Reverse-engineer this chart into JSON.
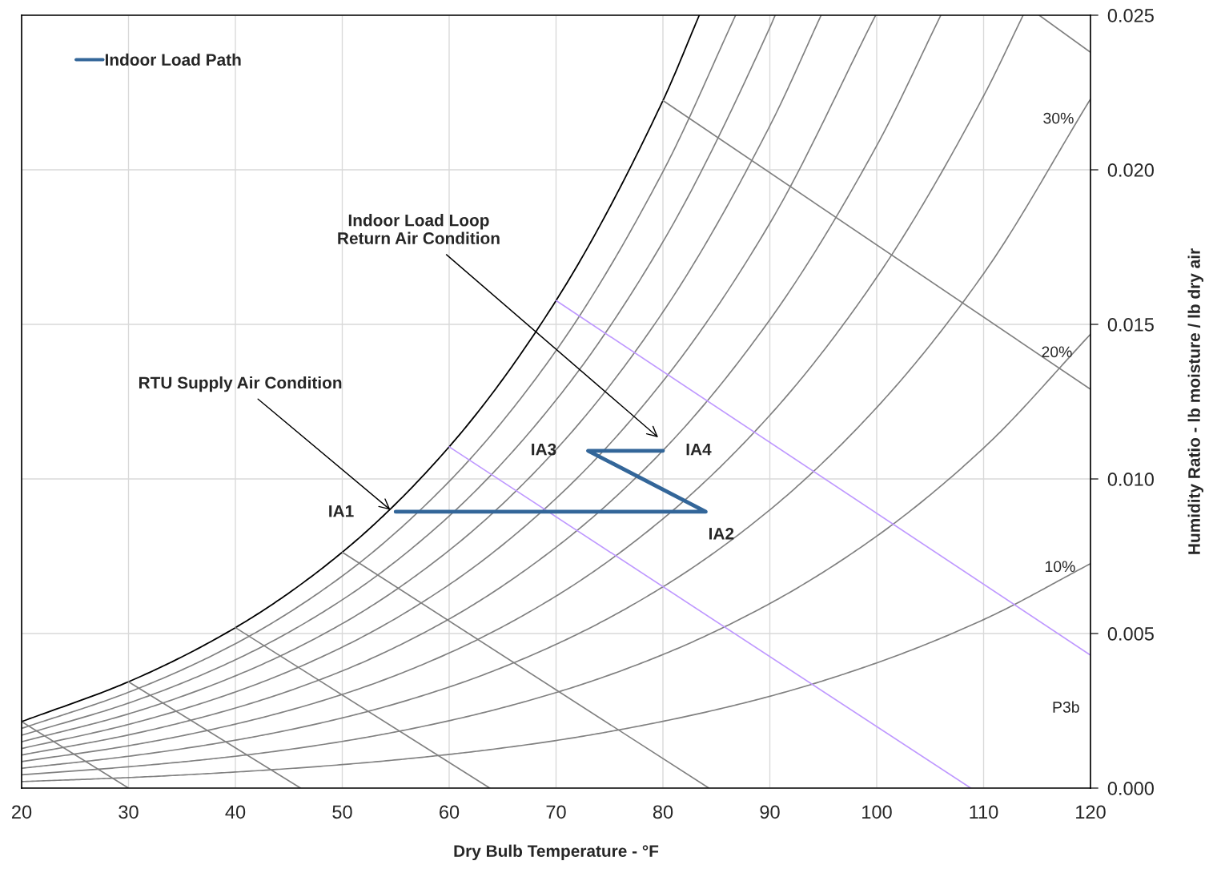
{
  "chart_data": {
    "type": "line",
    "xlabel": "Dry Bulb Temperature - °F",
    "ylabel": "Humidity Ratio - lb moisture / lb dry air",
    "xlim": [
      20,
      120
    ],
    "xticks": [
      20,
      30,
      40,
      50,
      60,
      70,
      80,
      90,
      100,
      110,
      120
    ],
    "ylim": [
      0,
      0.025
    ],
    "yticks": [
      {
        "value": 0,
        "label": "0.000"
      },
      {
        "value": 0.005,
        "label": "0.005"
      },
      {
        "value": 0.01,
        "label": "0.010"
      },
      {
        "value": 0.015,
        "label": "0.015"
      },
      {
        "value": 0.02,
        "label": "0.020"
      },
      {
        "value": 0.025,
        "label": "0.025"
      }
    ],
    "grid": true,
    "legend": "top left",
    "line_style": "solid",
    "series": [
      {
        "color": "#000000",
        "x": [
          20,
          30,
          40,
          50,
          60,
          70,
          80,
          83.4
        ],
        "values": [
          0.00215,
          0.00344,
          0.00519,
          0.00763,
          0.01104,
          0.01577,
          0.02224,
          0.025
        ]
      },
      {
        "color": "#808080",
        "x": [
          20,
          30,
          40,
          50,
          60,
          70,
          80,
          86.8
        ],
        "values": [
          0.00193,
          0.0031,
          0.00467,
          0.00686,
          0.00992,
          0.01415,
          0.01994,
          0.025
        ]
      },
      {
        "color": "#808080",
        "x": [
          20,
          30,
          40,
          50,
          60,
          70,
          80,
          90,
          90.5
        ],
        "values": [
          0.00171,
          0.00275,
          0.00415,
          0.00609,
          0.0088,
          0.01255,
          0.01767,
          0.0246,
          0.025
        ]
      },
      {
        "color": "#808080",
        "x": [
          20,
          30,
          40,
          50,
          60,
          70,
          80,
          90,
          94.8
        ],
        "values": [
          0.0015,
          0.0024,
          0.00363,
          0.00532,
          0.00769,
          0.01095,
          0.0154,
          0.02142,
          0.025
        ]
      },
      {
        "color": "#808080",
        "x": [
          20,
          30,
          40,
          50,
          60,
          70,
          80,
          90,
          99.9
        ],
        "values": [
          0.00128,
          0.00206,
          0.00311,
          0.00456,
          0.00658,
          0.00937,
          0.01316,
          0.01827,
          0.025
        ]
      },
      {
        "color": "#808080",
        "x": [
          20,
          30,
          40,
          50,
          60,
          70,
          80,
          90,
          100,
          106.0
        ],
        "values": [
          0.00107,
          0.00172,
          0.00259,
          0.00379,
          0.00547,
          0.00779,
          0.01092,
          0.01515,
          0.02078,
          0.025
        ]
      },
      {
        "color": "#808080",
        "x": [
          20,
          30,
          40,
          50,
          60,
          70,
          80,
          90,
          100,
          110,
          113.7
        ],
        "values": [
          0.00086,
          0.00137,
          0.00207,
          0.00303,
          0.00437,
          0.00621,
          0.00871,
          0.01206,
          0.01652,
          0.02239,
          0.025
        ]
      },
      {
        "color": "#808080",
        "x": [
          20,
          30,
          40,
          50,
          60,
          70,
          80,
          90,
          100,
          110,
          120
        ],
        "values": [
          0.00064,
          0.00103,
          0.00155,
          0.00227,
          0.00327,
          0.00465,
          0.00651,
          0.009,
          0.01231,
          0.01664,
          0.02229
        ]
      },
      {
        "color": "#808080",
        "x": [
          20,
          30,
          40,
          50,
          60,
          70,
          80,
          90,
          100,
          110,
          120
        ],
        "values": [
          0.00043,
          0.00069,
          0.00103,
          0.00151,
          0.00218,
          0.00309,
          0.00432,
          0.00597,
          0.00815,
          0.011,
          0.01468
        ]
      },
      {
        "color": "#808080",
        "x": [
          20,
          30,
          40,
          50,
          60,
          70,
          80,
          90,
          100,
          110,
          120
        ],
        "values": [
          0.00021,
          0.00034,
          0.00052,
          0.00076,
          0.00109,
          0.00154,
          0.00216,
          0.00297,
          0.00405,
          0.00545,
          0.00726
        ]
      },
      {
        "color": "#808080",
        "x": [
          20,
          30
        ],
        "values": [
          0.00215,
          0
        ]
      },
      {
        "color": "#808080",
        "x": [
          30,
          46.1
        ],
        "values": [
          0.00344,
          0
        ]
      },
      {
        "color": "#808080",
        "x": [
          40,
          63.8
        ],
        "values": [
          0.00519,
          0
        ]
      },
      {
        "color": "#808080",
        "x": [
          50,
          84.3
        ],
        "values": [
          0.00763,
          0
        ]
      },
      {
        "color": "#808080",
        "x": [
          80,
          120
        ],
        "values": [
          0.02224,
          0.0129
        ]
      },
      {
        "color": "#808080",
        "x": [
          115.2,
          120
        ],
        "values": [
          0.025,
          0.0238
        ]
      },
      {
        "color": "#bf99ff",
        "x": [
          60,
          108.8
        ],
        "values": [
          0.01104,
          0
        ]
      },
      {
        "color": "#bf99ff",
        "x": [
          70,
          120
        ],
        "values": [
          0.01577,
          0.0043
        ]
      },
      {
        "name": "Indoor Load Path",
        "color": "#336699",
        "x": [
          55,
          84,
          73,
          80
        ],
        "values": [
          0.00894,
          0.00894,
          0.01091,
          0.01091
        ]
      }
    ],
    "annotations": [
      {
        "text": "RTU Supply Air Condition",
        "x": 54.5,
        "y": 0.009
      },
      "Indoor Load Loop\nReturn Air Condition",
      "IA1",
      {
        "text": "IA2",
        "x": 84,
        "y": 0.00894
      },
      {
        "text": "IA3",
        "x": 73,
        "y": 0.01091
      },
      {
        "text": "IA4",
        "x": 80,
        "y": 0.01091
      },
      "30%",
      "20%",
      "10%",
      "P3b"
    ]
  }
}
